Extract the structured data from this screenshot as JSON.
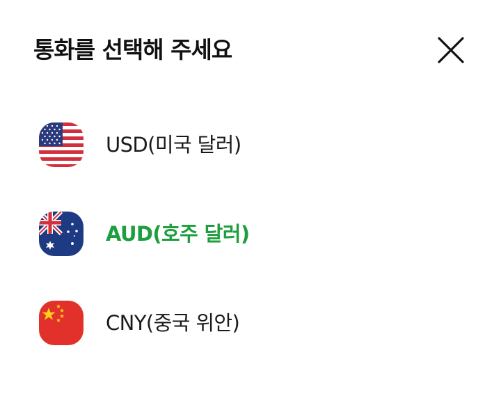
{
  "sheet": {
    "title": "통화를 선택해 주세요",
    "close_icon": "close-icon"
  },
  "currencies": [
    {
      "code": "USD",
      "label": "USD(미국 달러)",
      "flag": "us-flag-icon",
      "selected": false
    },
    {
      "code": "AUD",
      "label": "AUD(호주 달러)",
      "flag": "au-flag-icon",
      "selected": true
    },
    {
      "code": "CNY",
      "label": "CNY(중국 위안)",
      "flag": "cn-flag-icon",
      "selected": false
    }
  ],
  "colors": {
    "selected_text": "#1e9e3e",
    "default_text": "#1a1a1a",
    "title_text": "#111111"
  }
}
